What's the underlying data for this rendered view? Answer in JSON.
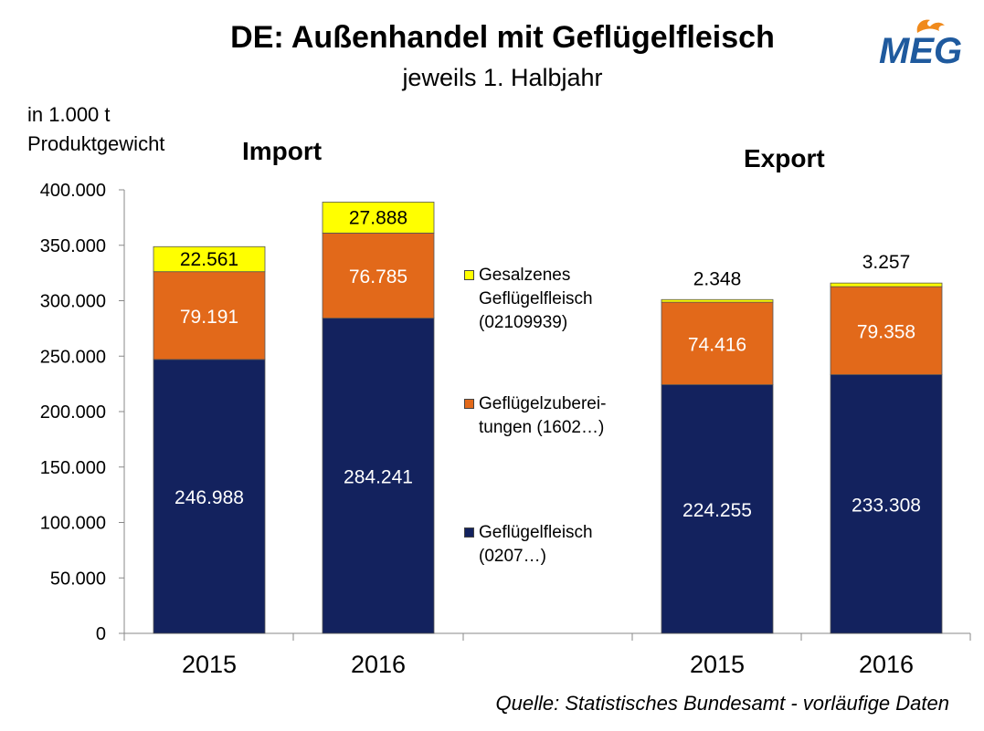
{
  "title": "DE: Außenhandel mit Geflügelfleisch",
  "subtitle": "jeweils 1. Halbjahr",
  "ylabel_line1": "in 1.000 t",
  "ylabel_line2": "Produktgewicht",
  "source": "Quelle: Statistisches Bundesamt - vorläufige Daten",
  "logo_text": "MEG",
  "colors": {
    "navy": "#13225E",
    "orange": "#E2691A",
    "yellow": "#FFFF00",
    "logo_blue": "#1F5A9E",
    "logo_orange": "#F08A1C"
  },
  "chart_data": {
    "type": "bar",
    "stacked": true,
    "groups": [
      "Import",
      "Export"
    ],
    "categories": [
      "2015",
      "2016",
      "2015",
      "2016"
    ],
    "category_groups": [
      "Import",
      "Import",
      "Export",
      "Export"
    ],
    "series": [
      {
        "name_line1": "Geflügelfleisch",
        "name_line2": "(0207…)",
        "values": [
          246988,
          284241,
          224255,
          233308
        ],
        "labels": [
          "246.988",
          "284.241",
          "224.255",
          "233.308"
        ],
        "color": "#13225E"
      },
      {
        "name_line1": "Geflügelzuberei-",
        "name_line2": "tungen (1602…)",
        "values": [
          79191,
          76785,
          74416,
          79358
        ],
        "labels": [
          "79.191",
          "76.785",
          "74.416",
          "79.358"
        ],
        "color": "#E2691A"
      },
      {
        "name_line1": "Gesalzenes",
        "name_line2": "Geflügelfleisch",
        "name_line3": "(02109939)",
        "values": [
          22561,
          27888,
          2348,
          3257
        ],
        "labels": [
          "22.561",
          "27.888",
          "2.348",
          "3.257"
        ],
        "color": "#FFFF00"
      }
    ],
    "ylim": [
      0,
      400000
    ],
    "yticks": [
      0,
      50000,
      100000,
      150000,
      200000,
      250000,
      300000,
      350000,
      400000
    ],
    "ytick_labels": [
      "0",
      "50.000",
      "100.000",
      "150.000",
      "200.000",
      "250.000",
      "300.000",
      "350.000",
      "400.000"
    ],
    "grid": false,
    "legend_position": "center"
  }
}
